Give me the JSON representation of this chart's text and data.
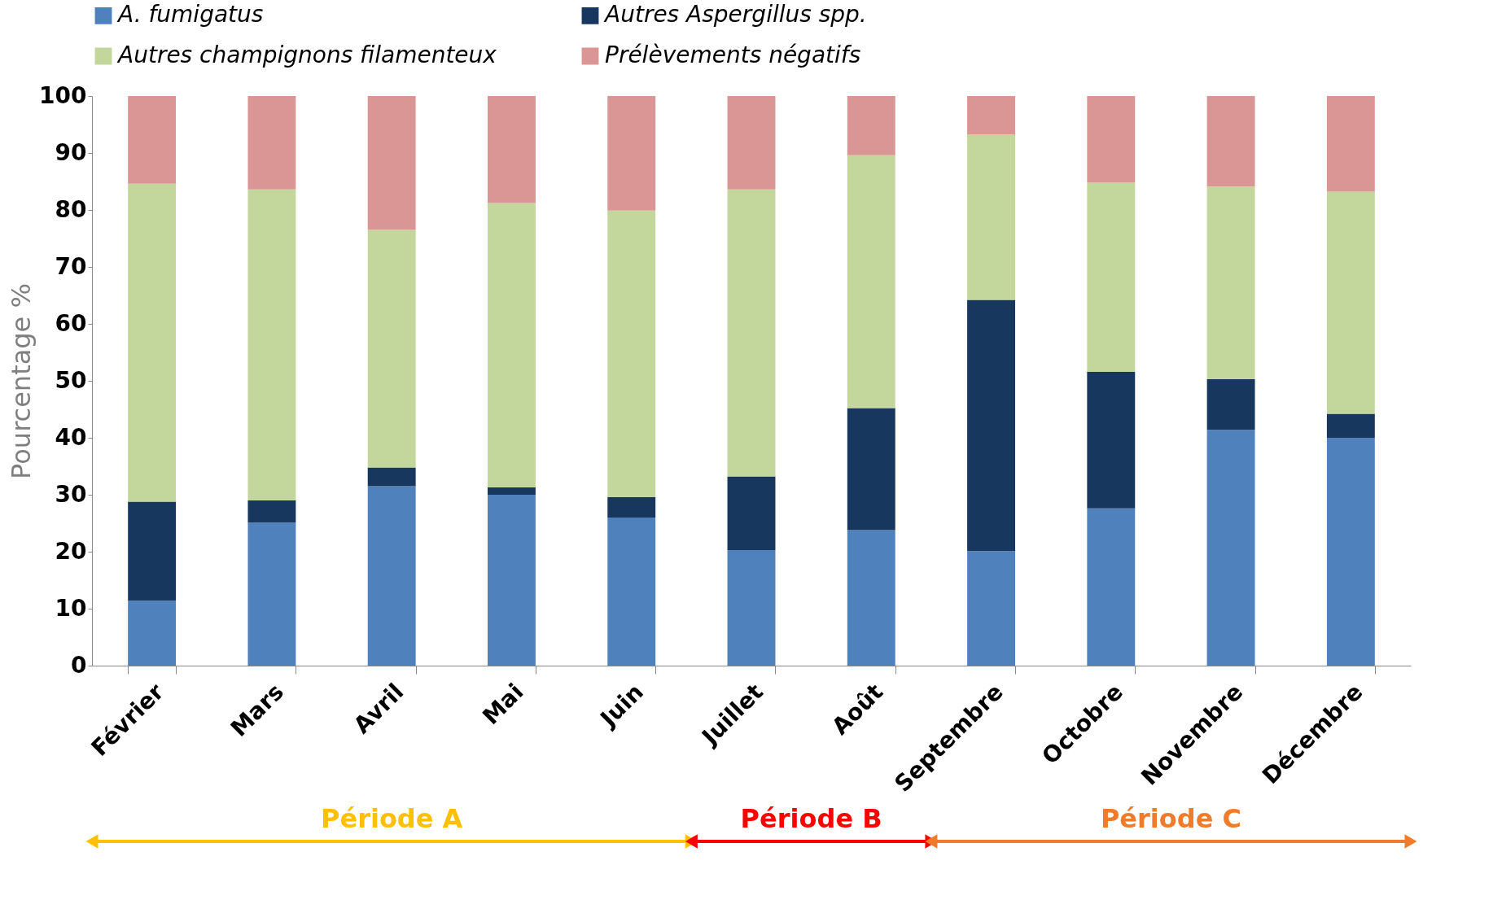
{
  "chart_data": {
    "type": "bar",
    "stacked": true,
    "ylabel": "Pourcentage %",
    "categories": [
      "Février",
      "Mars",
      "Avril",
      "Mai",
      "Juin",
      "Juillet",
      "Août",
      "Septembre",
      "Octobre",
      "Novembre",
      "Décembre"
    ],
    "series": [
      {
        "name": "A. fumigatus",
        "color": "#4f81bd",
        "values": [
          11.4,
          25.1,
          31.5,
          30.0,
          26.0,
          20.3,
          23.8,
          20.1,
          27.6,
          41.4,
          40.0
        ]
      },
      {
        "name": "Autres Aspergillus spp.",
        "color": "#17375e",
        "values": [
          17.4,
          3.9,
          3.3,
          1.3,
          3.6,
          12.9,
          21.4,
          44.1,
          24.0,
          8.9,
          4.2
        ]
      },
      {
        "name": "Autres champignons filamenteux",
        "color": "#c3d69b",
        "values": [
          55.8,
          54.6,
          41.7,
          49.9,
          50.3,
          50.4,
          44.4,
          29.1,
          33.2,
          33.8,
          39.0
        ]
      },
      {
        "name": "Prélèvements négatifs",
        "color": "#d99694",
        "values": [
          15.4,
          16.4,
          23.5,
          18.8,
          20.1,
          16.4,
          10.4,
          6.7,
          15.2,
          15.9,
          16.8
        ]
      }
    ],
    "ylim": [
      0,
      100
    ],
    "yticks": [
      0,
      10,
      20,
      30,
      40,
      50,
      60,
      70,
      80,
      90,
      100
    ],
    "grid": false,
    "legend": "top",
    "annotations": [
      "Période A",
      "Période B",
      "Période C"
    ]
  }
}
